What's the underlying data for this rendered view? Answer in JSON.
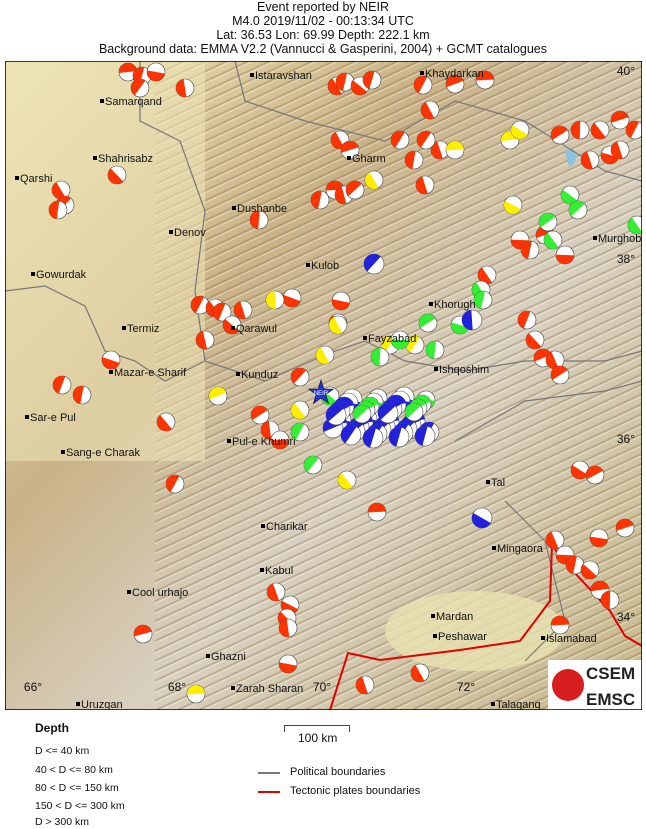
{
  "header": {
    "line1": "Event reported by NEIR",
    "line2": "M4.0  2019/11/02 - 00:13:34 UTC",
    "line3": "Lat: 36.53    Lon:  69.99     Depth: 222.1 km",
    "line4": "Background data: EMMA V2.2 (Vannucci & Gasperini, 2004) + GCMT catalogues"
  },
  "map": {
    "epicenter_label": "NEIR",
    "lat_ticks": [
      "40°",
      "38°",
      "36°",
      "34°"
    ],
    "lon_ticks": [
      "66°",
      "68°",
      "70°",
      "72°"
    ],
    "cities": [
      "Samarqand",
      "Istaravshan",
      "Khaydarkan",
      "Shahrisabz",
      "Qarshi",
      "Gharm",
      "Dushanbe",
      "Denov",
      "Murghob",
      "Gowurdak",
      "Kulob",
      "Termiz",
      "Qarawul",
      "Khorugh",
      "Fayzabad",
      "Ishqoshim",
      "Mazar-e Sharif",
      "Kunduz",
      "Sar-e Pul",
      "Sang-e Charak",
      "Pul-e Khumri",
      "Tal",
      "Charikar",
      "Mingaora",
      "Kabul",
      "Cool urhajo",
      "Mardan",
      "Peshawar",
      "Islamabad",
      "Ghazni",
      "Zarah Sharan",
      "Uruzgan",
      "Talagang"
    ],
    "logo": {
      "top": "CSEM",
      "bottom": "EMSC"
    }
  },
  "colors": {
    "depth_0_40": "#ff3300",
    "depth_40_80": "#ffee00",
    "depth_80_150": "#33ee33",
    "depth_150_300": "#2222dd",
    "epicenter": "#2233dd",
    "tectonic": "#e00000",
    "political": "#777777"
  },
  "legend": {
    "depth_title": "Depth",
    "depth_classes": [
      "D <= 40 km",
      "40 < D <= 80 km",
      "80 < D <= 150 km",
      "150 < D <= 300 km",
      "D > 300 km"
    ],
    "scale": "100 km",
    "political": "Political boundaries",
    "tectonic": "Tectonic plates boundaries"
  }
}
